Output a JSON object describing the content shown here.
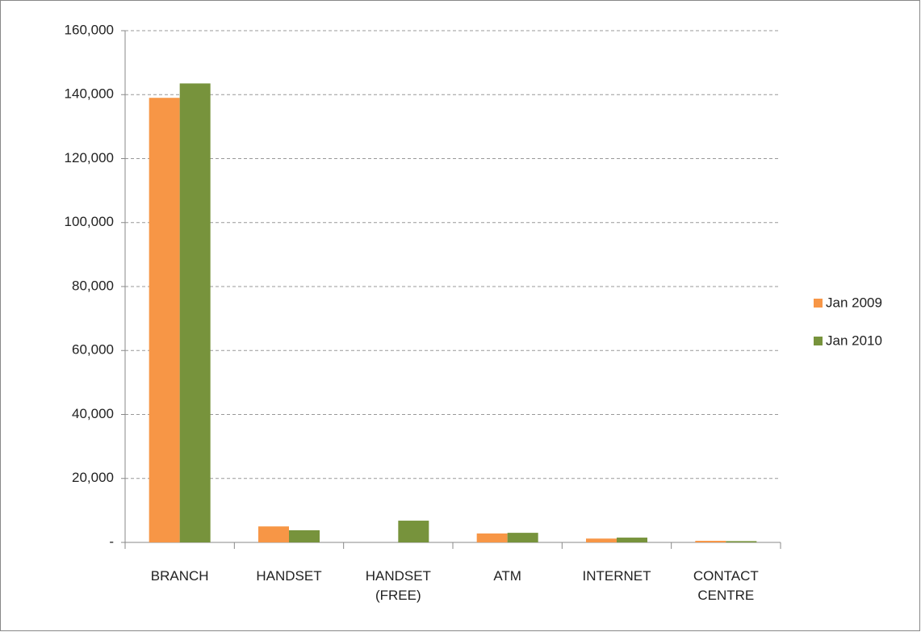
{
  "chart_data": {
    "type": "bar",
    "categories": [
      "BRANCH",
      "HANDSET",
      "HANDSET (FREE)",
      "ATM",
      "INTERNET",
      "CONTACT CENTRE"
    ],
    "series": [
      {
        "name": "Jan 2009",
        "color": "#f79646",
        "values": [
          139000,
          5000,
          0,
          2800,
          1200,
          500
        ]
      },
      {
        "name": "Jan 2010",
        "color": "#77933c",
        "values": [
          143500,
          3800,
          6800,
          3000,
          1500,
          400
        ]
      }
    ],
    "ylim": [
      0,
      160000
    ],
    "yticks": [
      {
        "value": 0,
        "label": "-"
      },
      {
        "value": 20000,
        "label": "20,000"
      },
      {
        "value": 40000,
        "label": "40,000"
      },
      {
        "value": 60000,
        "label": "60,000"
      },
      {
        "value": 80000,
        "label": "80,000"
      },
      {
        "value": 100000,
        "label": "100,000"
      },
      {
        "value": 120000,
        "label": "120,000"
      },
      {
        "value": 140000,
        "label": "140,000"
      },
      {
        "value": 160000,
        "label": "160,000"
      }
    ],
    "grid": true,
    "legend": "right"
  }
}
